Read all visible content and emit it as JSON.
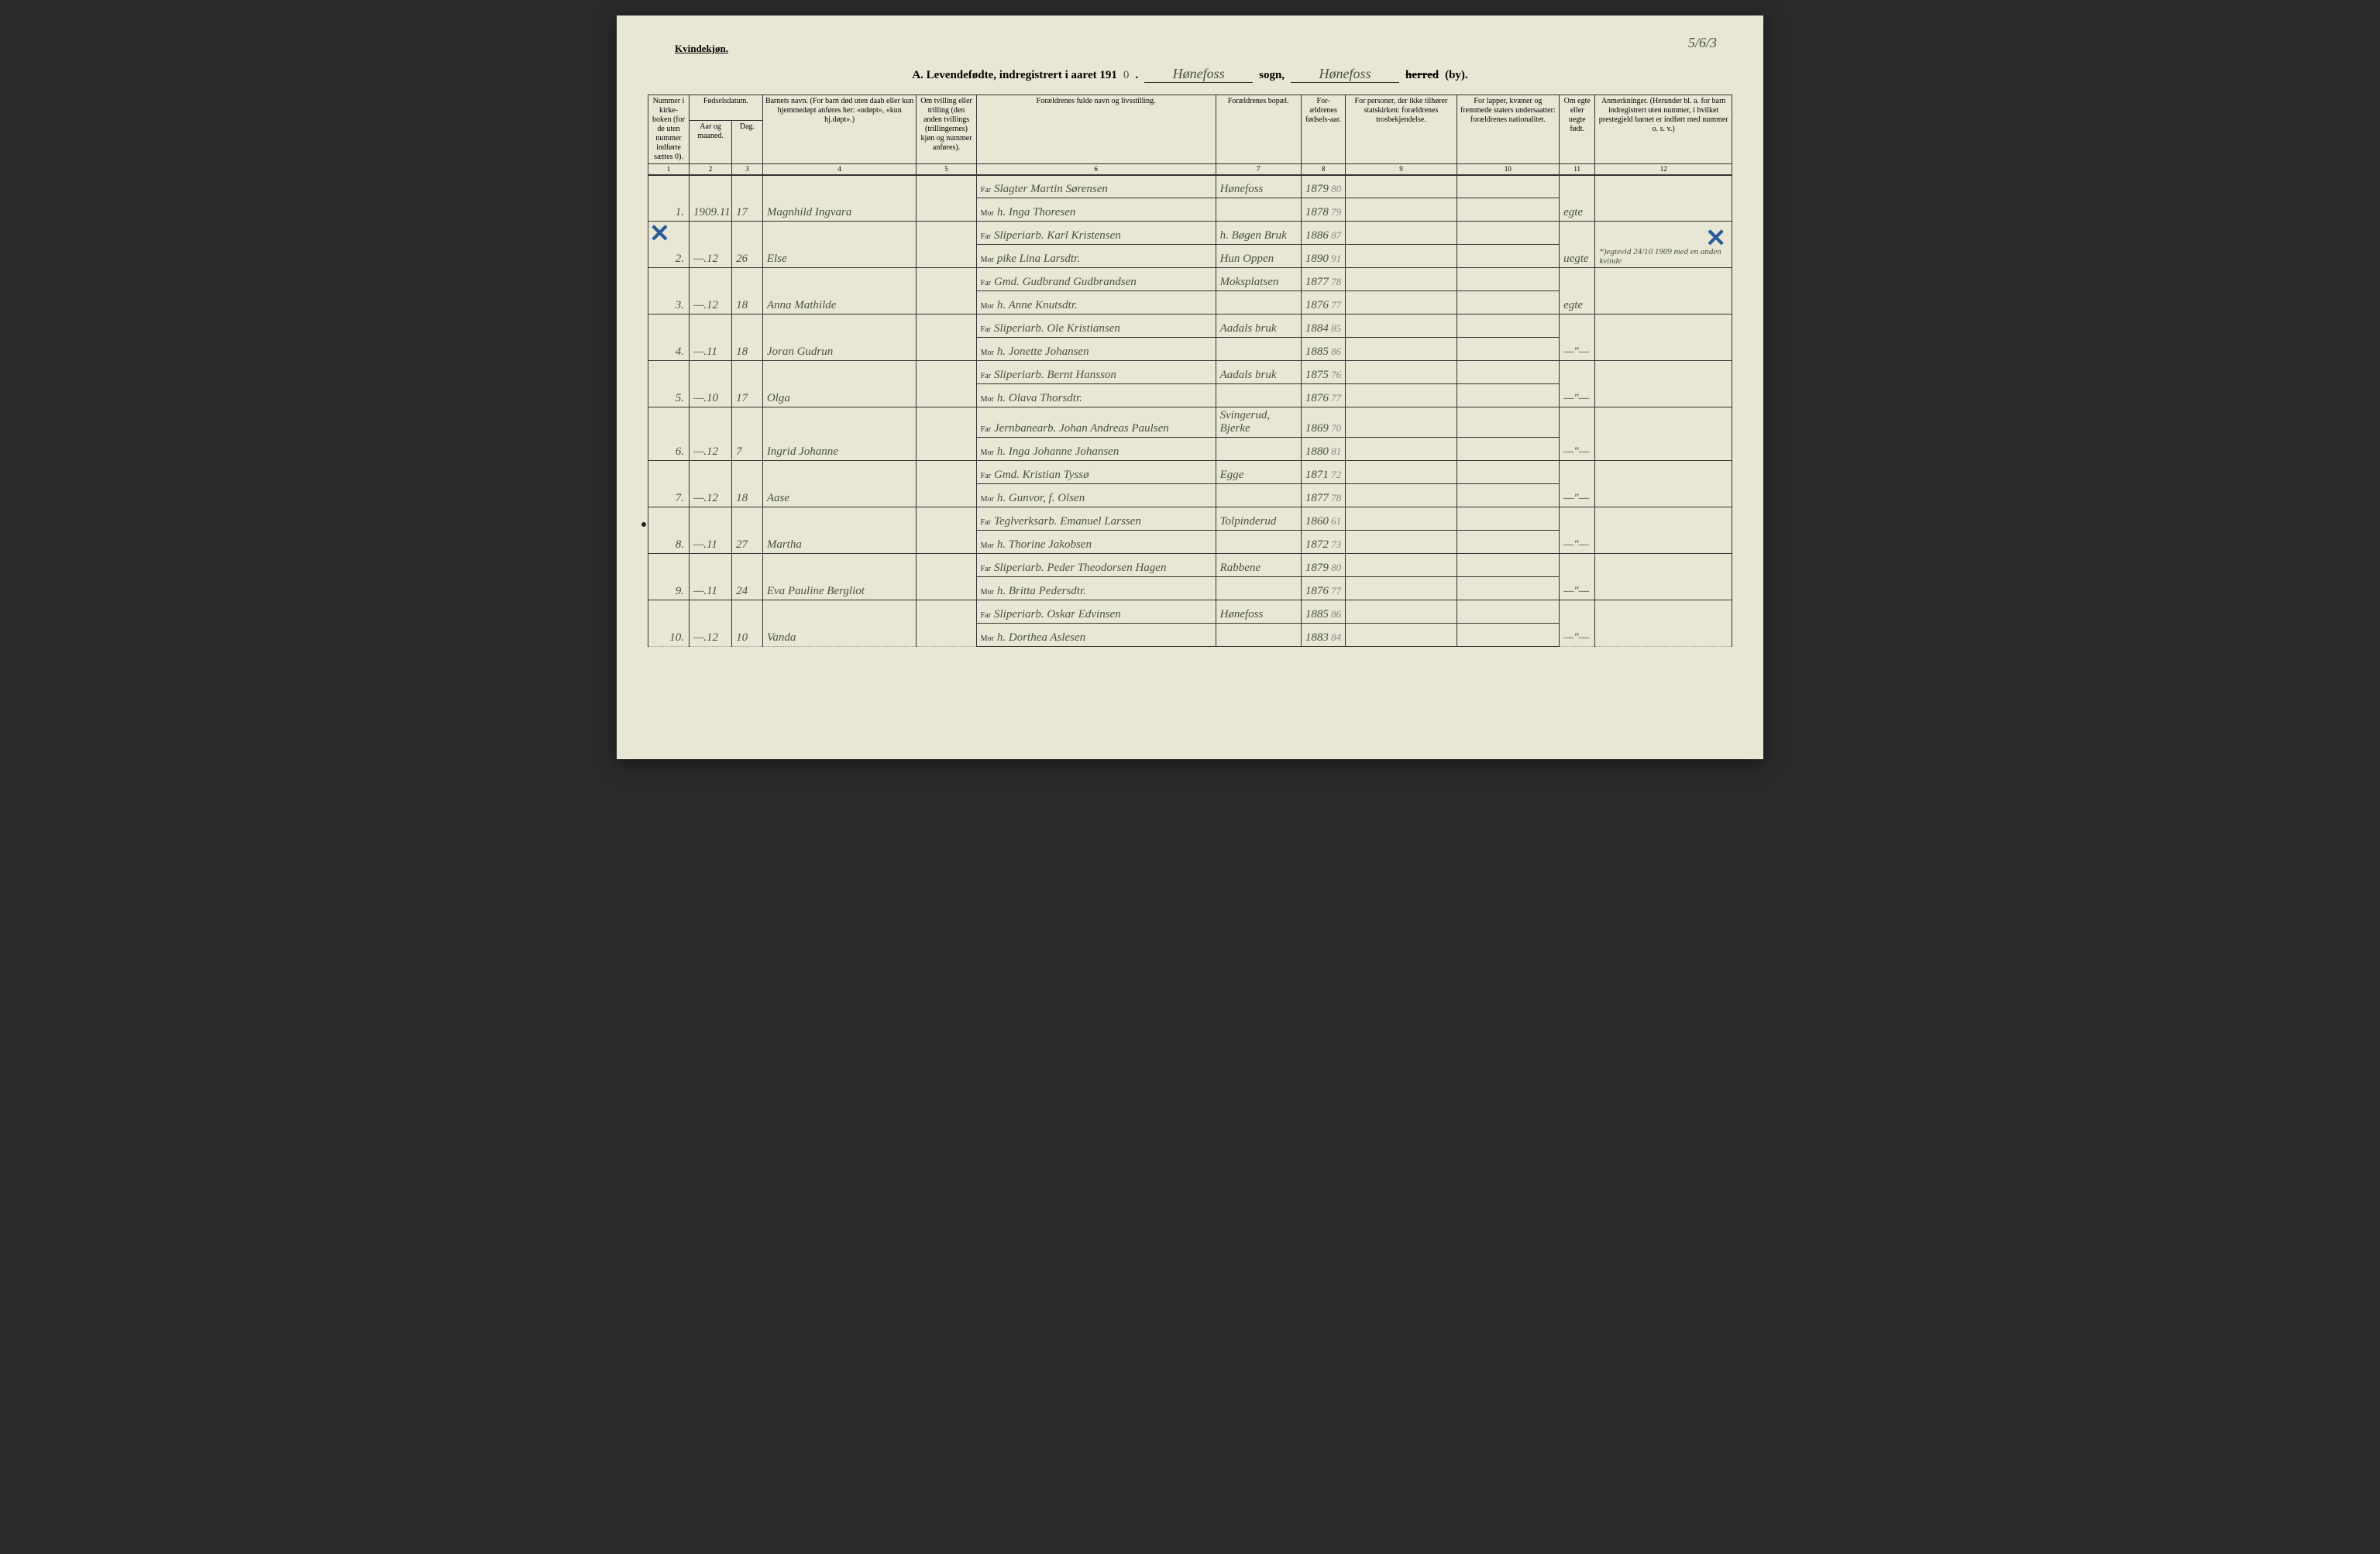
{
  "header": {
    "gender_label": "Kvindekjøn.",
    "title_prefix": "A.  Levendefødte, indregistrert i aaret 191",
    "year_digit": "0",
    "sogn_handwritten": "Hønefoss",
    "sogn_label": "sogn,",
    "herred_handwritten": "Hønefoss",
    "herred_label_struck": "herred",
    "herred_by": "(by).",
    "page_number": "5/6/3"
  },
  "columns": {
    "c1": "Nummer i kirke-boken (for de uten nummer indførte sættes 0).",
    "c2a": "Fødselsdatum.",
    "c2": "Aar og maaned.",
    "c3": "Dag.",
    "c4": "Barnets navn.\n(For barn død uten daab eller kun hjemmedøpt anføres her: «udøpt», «kun hj.døpt».)",
    "c5": "Om tvilling eller trilling (den anden tvillings (trillingernes) kjøn og nummer anføres).",
    "c6": "Forældrenes fulde navn og livsstilling.",
    "c7": "Forældrenes bopæl.",
    "c8": "For-ældrenes fødsels-aar.",
    "c9": "For personer, der ikke tilhører statskirken: forældrenes trosbekjendelse.",
    "c10": "For lapper, kvæner og fremmede staters undersaatter: forældrenes nationalitet.",
    "c11": "Om egte eller uegte født.",
    "c12": "Anmerkninger.\n(Herunder bl. a. for barn indregistrert uten nummer, i hvilket prestegjeld barnet er indført med nummer o. s. v.)"
  },
  "col_numbers": [
    "1",
    "2",
    "3",
    "4",
    "5",
    "6",
    "7",
    "8",
    "9",
    "10",
    "11",
    "12"
  ],
  "far_label": "Far",
  "mor_label": "Mor",
  "entries": [
    {
      "num": "1.",
      "year": "1909.11",
      "day": "17",
      "name": "Magnhild Ingvara",
      "far": "Slagter Martin Sørensen",
      "mor": "h. Inga Thoresen",
      "far_sted": "Hønefoss",
      "mor_sted": "",
      "far_aar": "1879",
      "far_aar2": "80",
      "mor_aar": "1878",
      "mor_aar2": "79",
      "egte": "egte",
      "anm": ""
    },
    {
      "num": "2.",
      "year": "—.12",
      "day": "26",
      "name": "Else",
      "far": "Sliperiarb. Karl Kristensen",
      "mor": "pike Lina Larsdtr.",
      "far_sted": "h. Bøgen Bruk",
      "mor_sted": "Hun Oppen",
      "far_aar": "1886",
      "far_aar2": "87",
      "mor_aar": "1890",
      "mor_aar2": "91",
      "egte": "uegte",
      "anm": "*)egtevid 24/10 1909 med en anden kvinde"
    },
    {
      "num": "3.",
      "year": "—.12",
      "day": "18",
      "name": "Anna Mathilde",
      "far": "Gmd. Gudbrand Gudbrandsen",
      "mor": "h. Anne Knutsdtr.",
      "far_sted": "Moksplatsen",
      "mor_sted": "",
      "far_aar": "1877",
      "far_aar2": "78",
      "mor_aar": "1876",
      "mor_aar2": "77",
      "egte": "egte",
      "anm": ""
    },
    {
      "num": "4.",
      "year": "—.11",
      "day": "18",
      "name": "Joran Gudrun",
      "far": "Sliperiarb. Ole Kristiansen",
      "mor": "h. Jonette Johansen",
      "far_sted": "Aadals bruk",
      "mor_sted": "",
      "far_aar": "1884",
      "far_aar2": "85",
      "mor_aar": "1885",
      "mor_aar2": "86",
      "egte": "—\"—",
      "anm": ""
    },
    {
      "num": "5.",
      "year": "—.10",
      "day": "17",
      "name": "Olga",
      "far": "Sliperiarb. Bernt Hansson",
      "mor": "h. Olava Thorsdtr.",
      "far_sted": "Aadals bruk",
      "mor_sted": "",
      "far_aar": "1875",
      "far_aar2": "76",
      "mor_aar": "1876",
      "mor_aar2": "77",
      "egte": "—\"—",
      "anm": ""
    },
    {
      "num": "6.",
      "year": "—.12",
      "day": "7",
      "name": "Ingrid Johanne",
      "far": "Jernbanearb. Johan Andreas Paulsen",
      "mor": "h. Inga Johanne Johansen",
      "far_sted": "Svingerud, Bjerke",
      "mor_sted": "",
      "far_aar": "1869",
      "far_aar2": "70",
      "mor_aar": "1880",
      "mor_aar2": "81",
      "egte": "—\"—",
      "anm": ""
    },
    {
      "num": "7.",
      "year": "—.12",
      "day": "18",
      "name": "Aase",
      "far": "Gmd. Kristian Tyssø",
      "mor": "h. Gunvor, f. Olsen",
      "far_sted": "Egge",
      "mor_sted": "",
      "far_aar": "1871",
      "far_aar2": "72",
      "mor_aar": "1877",
      "mor_aar2": "78",
      "egte": "—\"—",
      "anm": ""
    },
    {
      "num": "8.",
      "year": "—.11",
      "day": "27",
      "name": "Martha",
      "far": "Teglverksarb. Emanuel Larssen",
      "mor": "h. Thorine Jakobsen",
      "far_sted": "Tolpinderud",
      "mor_sted": "",
      "far_aar": "1860",
      "far_aar2": "61",
      "mor_aar": "1872",
      "mor_aar2": "73",
      "egte": "—\"—",
      "anm": ""
    },
    {
      "num": "9.",
      "year": "—.11",
      "day": "24",
      "name": "Eva Pauline Bergliot",
      "far": "Sliperiarb. Peder Theodorsen Hagen",
      "mor": "h. Britta Pedersdtr.",
      "far_sted": "Rabbene",
      "mor_sted": "",
      "far_aar": "1879",
      "far_aar2": "80",
      "mor_aar": "1876",
      "mor_aar2": "77",
      "egte": "—\"—",
      "anm": ""
    },
    {
      "num": "10.",
      "year": "—.12",
      "day": "10",
      "name": "Vanda",
      "far": "Sliperiarb. Oskar Edvinsen",
      "mor": "h. Dorthea Aslesen",
      "far_sted": "Hønefoss",
      "mor_sted": "",
      "far_aar": "1885",
      "far_aar2": "86",
      "mor_aar": "1883",
      "mor_aar2": "84",
      "egte": "—\"—",
      "anm": ""
    }
  ]
}
